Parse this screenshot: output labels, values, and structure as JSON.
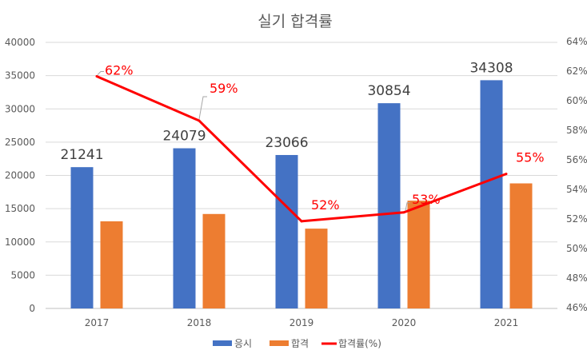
{
  "chart_data": {
    "type": "bar",
    "title": "실기 합격률",
    "categories": [
      "2017",
      "2018",
      "2019",
      "2020",
      "2021"
    ],
    "series": [
      {
        "name": "응시",
        "type": "bar",
        "axis": "left",
        "color": "#4472c4",
        "values": [
          21241,
          24079,
          23066,
          30854,
          34308
        ],
        "labels": [
          "21241",
          "24079",
          "23066",
          "30854",
          "34308"
        ]
      },
      {
        "name": "합격",
        "type": "bar",
        "axis": "left",
        "color": "#ed7d31",
        "values": [
          13100,
          14200,
          12000,
          16200,
          18800
        ]
      },
      {
        "name": "합격률(%)",
        "type": "line",
        "axis": "right",
        "color": "#ff0000",
        "values": [
          61.7,
          58.7,
          51.9,
          52.5,
          55.1
        ],
        "labels": [
          "62%",
          "59%",
          "52%",
          "53%",
          "55%"
        ]
      }
    ],
    "y_left": {
      "ylim": [
        0,
        40000
      ],
      "ticks": [
        "0",
        "5000",
        "10000",
        "15000",
        "20000",
        "25000",
        "30000",
        "35000",
        "40000"
      ]
    },
    "y_right": {
      "ylim": [
        46,
        64
      ],
      "ticks": [
        "46%",
        "48%",
        "50%",
        "52%",
        "54%",
        "56%",
        "58%",
        "60%",
        "62%",
        "64%"
      ]
    },
    "grid": true,
    "legend_position": "bottom"
  }
}
